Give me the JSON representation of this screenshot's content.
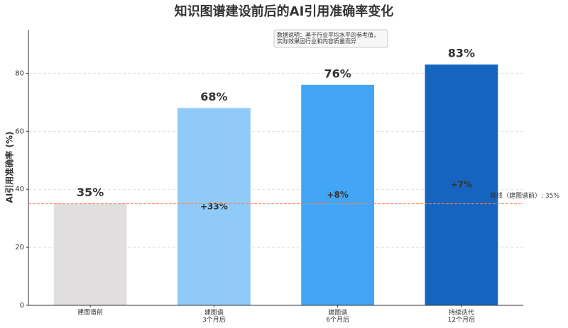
{
  "chart_data": {
    "type": "bar",
    "title": "知识图谱建设前后的AI引用准确率变化",
    "y_label": "AI引用准确率 (%)",
    "categories": [
      "建图谱前",
      "建图谱\n3个月后",
      "建图谱\n6个月后",
      "持续迭代\n12个月后"
    ],
    "values": [
      35,
      68,
      76,
      83
    ],
    "value_labels": [
      "35%",
      "68%",
      "76%",
      "83%"
    ],
    "colors": [
      "#e0dede",
      "#90caf9",
      "#42a5f5",
      "#1565c0"
    ],
    "gain_labels": [
      null,
      "+33%",
      "+8%",
      "+7%"
    ],
    "baseline": {
      "value": 35,
      "label": "基线（建图谱前）: 35%",
      "color": "#ff7f50"
    },
    "note": "数据说明：基于行业平均水平的参考值，\n实际效果因行业和内容质量而异",
    "ylim": [
      0,
      95
    ],
    "yticks": [
      0,
      20,
      40,
      60,
      80
    ],
    "grid": true
  }
}
